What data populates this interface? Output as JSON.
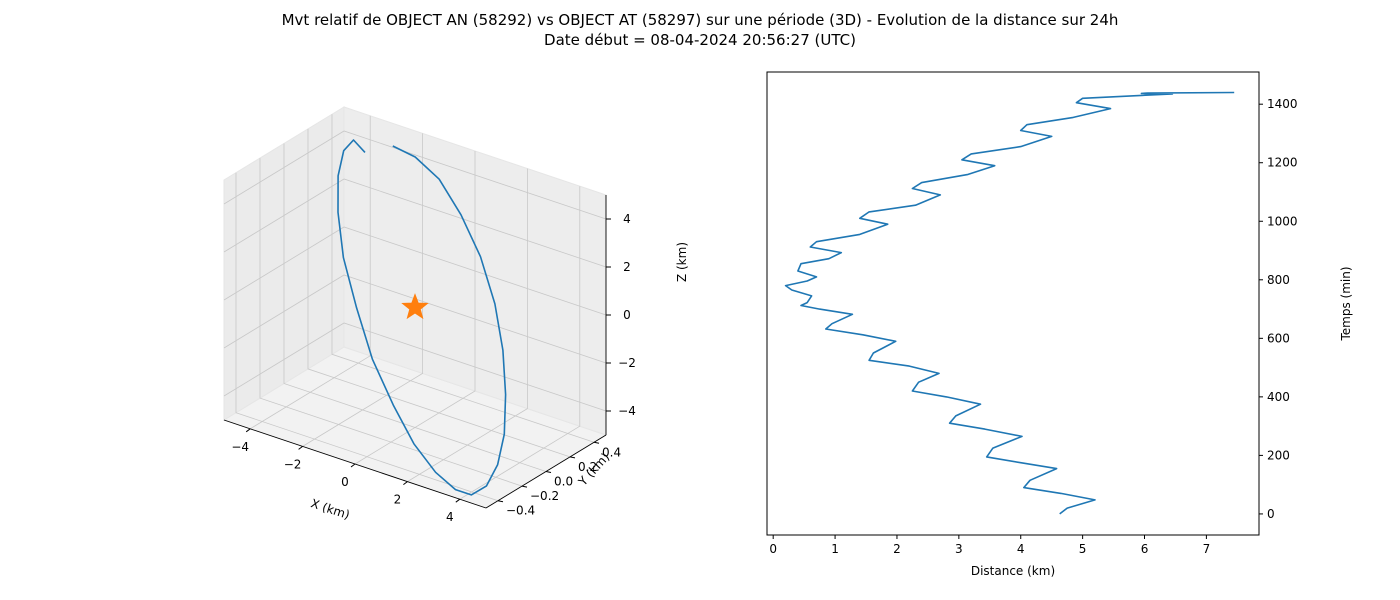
{
  "title_line1": "Mvt relatif de OBJECT AN (58292) vs OBJECT AT (58297) sur une période (3D) - Evolution de la distance sur 24h",
  "title_line2": "Date début = 08-04-2024 20:56:27 (UTC)",
  "colors": {
    "series": "#1f77b4",
    "marker": "#ff7f0e",
    "pane": "#f2f2f2",
    "grid": "#c8c8c8"
  },
  "chart_data": [
    {
      "type": "line3d",
      "xlabel": "X (km)",
      "ylabel": "Y (km)",
      "zlabel": "Z (km)",
      "xticks": [
        "−4",
        "−2",
        "0",
        "2",
        "4"
      ],
      "yticks": [
        "−0.4",
        "−0.2",
        "0.0",
        "0.2",
        "0.4"
      ],
      "zticks": [
        "−4",
        "−2",
        "0",
        "2",
        "4"
      ],
      "xlim": [
        -5,
        5
      ],
      "ylim": [
        -0.5,
        0.5
      ],
      "zlim": [
        -5,
        5
      ],
      "grid": true,
      "marker": {
        "shape": "star",
        "x": 0,
        "y": 0,
        "z": 0
      },
      "series": [
        {
          "x": [
            -4.2,
            -4.5,
            -4.6,
            -4.4,
            -3.9,
            -3.1,
            -2.0,
            -0.8,
            0.5,
            1.7,
            2.8,
            3.7,
            4.3,
            4.7,
            4.8,
            4.6,
            4.1,
            3.4,
            2.5,
            1.4,
            0.2,
            -1.0,
            -2.1,
            -3.0
          ],
          "y": [
            0.5,
            0.47,
            0.41,
            0.32,
            0.21,
            0.08,
            -0.05,
            -0.18,
            -0.29,
            -0.38,
            -0.44,
            -0.47,
            -0.47,
            -0.43,
            -0.36,
            -0.26,
            -0.14,
            -0.01,
            0.12,
            0.24,
            0.34,
            0.42,
            0.46,
            0.47
          ],
          "z": [
            3.4,
            3.9,
            3.6,
            2.9,
            1.9,
            0.7,
            -0.6,
            -1.9,
            -3.0,
            -3.9,
            -4.5,
            -4.8,
            -4.8,
            -4.4,
            -3.7,
            -2.8,
            -1.7,
            -0.5,
            0.7,
            1.9,
            2.9,
            3.7,
            4.1,
            4.2
          ]
        }
      ]
    },
    {
      "type": "line",
      "xlabel": "Distance (km)",
      "ylabel": "Temps (min)",
      "xlim": [
        -0.1,
        7.85
      ],
      "ylim": [
        -72,
        1510
      ],
      "xticks": [
        0,
        1,
        2,
        3,
        4,
        5,
        6,
        7
      ],
      "yticks": [
        0,
        200,
        400,
        600,
        800,
        1000,
        1200,
        1400
      ],
      "y_axis_side": "right",
      "series": [
        {
          "distance": [
            4.63,
            4.75,
            5.2,
            4.65,
            4.05,
            4.15,
            4.58,
            4.0,
            3.45,
            3.55,
            4.02,
            3.42,
            2.85,
            2.95,
            3.35,
            2.8,
            2.25,
            2.35,
            2.68,
            2.2,
            1.55,
            1.62,
            1.98,
            1.45,
            0.85,
            0.95,
            1.28,
            0.75,
            0.45,
            0.55,
            0.62,
            0.3,
            0.2,
            0.55,
            0.7,
            0.4,
            0.45,
            0.9,
            1.1,
            0.6,
            0.7,
            1.4,
            1.85,
            1.4,
            1.55,
            2.3,
            2.7,
            2.25,
            2.4,
            3.15,
            3.58,
            3.05,
            3.2,
            4.0,
            4.5,
            4.0,
            4.1,
            4.85,
            5.45,
            4.9,
            5.0,
            5.95,
            6.45,
            5.95,
            6.05,
            7.45
          ],
          "time": [
            0,
            20,
            48,
            70,
            90,
            115,
            155,
            175,
            195,
            225,
            265,
            290,
            310,
            335,
            375,
            400,
            420,
            450,
            480,
            505,
            525,
            550,
            590,
            612,
            632,
            650,
            682,
            700,
            712,
            722,
            745,
            765,
            780,
            796,
            810,
            830,
            855,
            872,
            893,
            912,
            930,
            955,
            990,
            1010,
            1032,
            1055,
            1090,
            1112,
            1132,
            1160,
            1190,
            1210,
            1230,
            1255,
            1290,
            1310,
            1330,
            1355,
            1385,
            1405,
            1420,
            1430,
            1435,
            1437,
            1438,
            1440
          ]
        }
      ]
    }
  ]
}
